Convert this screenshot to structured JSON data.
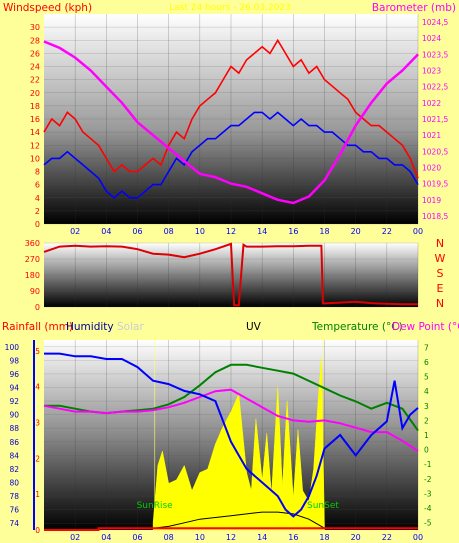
{
  "background_color": "#ffff99",
  "header_text": "Last 24 hours - 26.03.2023",
  "time_axis": {
    "ticks": [
      "02",
      "04",
      "06",
      "08",
      "10",
      "12",
      "14",
      "16",
      "18",
      "20",
      "22",
      "00"
    ]
  },
  "chart_data": [
    {
      "type": "line",
      "name": "wind-barometer",
      "left_label": "Windspeed (kph)",
      "right_label": "Barometer (mb)",
      "y_left": {
        "min": 0,
        "max": 32,
        "ticks": [
          "0",
          "2",
          "4",
          "6",
          "8",
          "10",
          "12",
          "14",
          "16",
          "18",
          "20",
          "22",
          "24",
          "26",
          "28",
          "30"
        ]
      },
      "y_right": {
        "min": 1018.25,
        "max": 1024.75,
        "ticks": [
          "1018,5",
          "1019",
          "1019,5",
          "1020",
          "1020,5",
          "1021",
          "1021,5",
          "1022",
          "1022,5",
          "1023",
          "1023,5",
          "1024",
          "1024,5"
        ]
      },
      "series": [
        {
          "key": "gust",
          "color": "#ff0000",
          "axis": "left",
          "x": [
            0,
            0.5,
            1,
            1.5,
            2,
            2.5,
            3,
            3.5,
            4,
            4.5,
            5,
            5.5,
            6,
            6.5,
            7,
            7.5,
            8,
            8.5,
            9,
            9.5,
            10,
            10.5,
            11,
            11.5,
            12,
            12.5,
            13,
            13.5,
            14,
            14.5,
            15,
            15.5,
            16,
            16.5,
            17,
            17.5,
            18,
            18.5,
            19,
            19.5,
            20,
            20.5,
            21,
            21.5,
            22,
            22.5,
            23,
            23.5,
            24
          ],
          "values": [
            14,
            16,
            15,
            17,
            16,
            14,
            13,
            12,
            10,
            8,
            9,
            8,
            8,
            9,
            10,
            9,
            12,
            14,
            13,
            16,
            18,
            19,
            20,
            22,
            24,
            23,
            25,
            26,
            27,
            26,
            28,
            26,
            24,
            25,
            23,
            24,
            22,
            21,
            20,
            19,
            17,
            16,
            15,
            15,
            14,
            13,
            12,
            10,
            7
          ]
        },
        {
          "key": "average",
          "color": "#0000ff",
          "axis": "left",
          "x": [
            0,
            0.5,
            1,
            1.5,
            2,
            2.5,
            3,
            3.5,
            4,
            4.5,
            5,
            5.5,
            6,
            6.5,
            7,
            7.5,
            8,
            8.5,
            9,
            9.5,
            10,
            10.5,
            11,
            11.5,
            12,
            12.5,
            13,
            13.5,
            14,
            14.5,
            15,
            15.5,
            16,
            16.5,
            17,
            17.5,
            18,
            18.5,
            19,
            19.5,
            20,
            20.5,
            21,
            21.5,
            22,
            22.5,
            23,
            23.5,
            24
          ],
          "values": [
            9,
            10,
            10,
            11,
            10,
            9,
            8,
            7,
            5,
            4,
            5,
            4,
            4,
            5,
            6,
            6,
            8,
            10,
            9,
            11,
            12,
            13,
            13,
            14,
            15,
            15,
            16,
            17,
            17,
            16,
            17,
            16,
            15,
            16,
            15,
            15,
            14,
            14,
            13,
            12,
            12,
            11,
            11,
            10,
            10,
            9,
            9,
            8,
            6
          ]
        },
        {
          "key": "barometer",
          "color": "#ff00ff",
          "axis": "right",
          "x": [
            0,
            1,
            2,
            3,
            4,
            5,
            6,
            7,
            8,
            9,
            10,
            11,
            12,
            13,
            14,
            15,
            16,
            17,
            18,
            19,
            20,
            21,
            22,
            23,
            24
          ],
          "values": [
            1023.9,
            1023.7,
            1023.4,
            1023.0,
            1022.5,
            1022.0,
            1021.4,
            1021.0,
            1020.6,
            1020.2,
            1019.8,
            1019.7,
            1019.5,
            1019.4,
            1019.2,
            1019.0,
            1018.9,
            1019.1,
            1019.6,
            1020.4,
            1021.3,
            1022.0,
            1022.6,
            1023.0,
            1023.5
          ]
        }
      ]
    },
    {
      "type": "line",
      "name": "wind-direction",
      "y_left": {
        "min": 0,
        "max": 360,
        "ticks": [
          "0",
          "90",
          "180",
          "270",
          "360"
        ]
      },
      "direction_letters": [
        "N",
        "W",
        "S",
        "E",
        "N"
      ],
      "series": [
        {
          "key": "direction",
          "color": "#dd0000",
          "x": [
            0,
            1,
            2,
            3,
            4,
            5,
            6,
            7,
            8,
            9,
            10,
            11,
            12,
            12.2,
            12.5,
            12.8,
            13,
            14,
            15,
            16,
            17,
            17.8,
            17.9,
            18,
            19,
            20,
            21,
            22,
            23,
            24
          ],
          "values": [
            310,
            340,
            345,
            340,
            342,
            340,
            325,
            300,
            295,
            280,
            300,
            325,
            355,
            10,
            10,
            350,
            340,
            340,
            342,
            342,
            345,
            345,
            20,
            20,
            25,
            30,
            22,
            18,
            15,
            15
          ]
        }
      ]
    },
    {
      "type": "line",
      "name": "rain-humidity-uv-temperature",
      "labels": {
        "rainfall": "Rainfall (mm)",
        "humidity": "Humidity",
        "solar": "Solar",
        "uv": "UV",
        "temperature": "Temperature (°C)",
        "dewpoint": "Dew Point (°C)"
      },
      "colors": {
        "rainfall": "#ff0000",
        "humidity": "#000099",
        "solar": "#cccccc",
        "uv": "#000000",
        "temperature": "#008000",
        "dewpoint": "#ff00ff"
      },
      "y_left": {
        "min": 73,
        "max": 101,
        "ticks": [
          "74",
          "76",
          "78",
          "80",
          "82",
          "84",
          "86",
          "88",
          "90",
          "92",
          "94",
          "96",
          "98",
          "100"
        ]
      },
      "y_rain": {
        "min": 0,
        "max": 5.3,
        "ticks": [
          "0",
          "1",
          "2",
          "3",
          "4",
          "5"
        ]
      },
      "y_right": {
        "min": -5.5,
        "max": 7.5,
        "ticks": [
          "-5",
          "-4",
          "-3",
          "-2",
          "-1",
          "0",
          "1",
          "2",
          "3",
          "4",
          "5",
          "6",
          "7"
        ]
      },
      "sunrise_label": "SunRise",
      "sunset_label": "SunSet",
      "sunrise_hour": 7.1,
      "sunset_hour": 17.9,
      "series": [
        {
          "key": "humidity",
          "color": "#0000ff",
          "axis": "left",
          "x": [
            0,
            1,
            2,
            3,
            4,
            5,
            6,
            7,
            8,
            9,
            10,
            11,
            12,
            12.5,
            13,
            13.5,
            14,
            15,
            15.5,
            16,
            16.5,
            17,
            17.5,
            18,
            19,
            20,
            21,
            22,
            22.5,
            23,
            23.5,
            24
          ],
          "values": [
            99,
            99,
            98.6,
            98.6,
            98.2,
            98.2,
            97,
            95,
            94.5,
            93.5,
            93,
            92,
            86,
            84,
            82,
            81,
            80,
            78,
            76,
            75,
            76,
            78,
            81,
            85,
            87,
            84,
            87,
            89,
            95,
            88,
            90,
            91
          ]
        },
        {
          "key": "temperature",
          "color": "#008000",
          "axis": "right",
          "x": [
            0,
            1,
            2,
            3,
            4,
            5,
            6,
            7,
            8,
            9,
            10,
            11,
            12,
            13,
            14,
            15,
            16,
            17,
            18,
            19,
            20,
            21,
            22,
            23,
            24
          ],
          "values": [
            3.0,
            3.0,
            2.8,
            2.6,
            2.5,
            2.6,
            2.7,
            2.8,
            3.1,
            3.6,
            4.4,
            5.3,
            5.8,
            5.8,
            5.6,
            5.4,
            5.2,
            4.7,
            4.2,
            3.7,
            3.3,
            2.8,
            3.2,
            2.8,
            1.3
          ]
        },
        {
          "key": "dewpoint",
          "color": "#ff00ff",
          "axis": "right",
          "x": [
            0,
            1,
            2,
            3,
            4,
            5,
            6,
            7,
            8,
            9,
            10,
            11,
            12,
            13,
            14,
            15,
            16,
            17,
            18,
            19,
            20,
            21,
            22,
            23,
            24
          ],
          "values": [
            3.0,
            2.8,
            2.6,
            2.6,
            2.5,
            2.6,
            2.6,
            2.7,
            2.9,
            3.2,
            3.6,
            4.0,
            4.1,
            3.5,
            2.9,
            2.3,
            2.0,
            1.9,
            2.0,
            1.8,
            1.5,
            1.2,
            1.2,
            0.6,
            -0.1
          ]
        },
        {
          "key": "solar",
          "color": "#ffff00",
          "axis": "rain",
          "x": [
            7.0,
            7.3,
            7.6,
            8,
            8.5,
            9,
            9.5,
            10,
            10.5,
            11,
            11.5,
            12,
            12.5,
            13,
            13.3,
            13.6,
            14,
            14.3,
            14.6,
            15,
            15.3,
            15.6,
            16,
            16.3,
            16.6,
            17,
            17.3,
            17.6,
            17.8,
            18.0
          ],
          "values": [
            0.2,
            1.8,
            2.2,
            1.3,
            1.4,
            1.8,
            1.1,
            1.6,
            1.7,
            2.4,
            2.9,
            3.3,
            3.8,
            1.6,
            1.1,
            3.1,
            1.4,
            2.7,
            1.0,
            4.0,
            1.2,
            3.6,
            0.9,
            2.8,
            1.1,
            0.8,
            1.7,
            3.7,
            4.8,
            0.1
          ]
        },
        {
          "key": "uv",
          "color": "#000000",
          "axis": "rain",
          "x": [
            7,
            8,
            9,
            10,
            11,
            12,
            13,
            14,
            15,
            16,
            17,
            18
          ],
          "values": [
            0.05,
            0.1,
            0.2,
            0.3,
            0.35,
            0.4,
            0.45,
            0.5,
            0.5,
            0.45,
            0.3,
            0.05
          ]
        },
        {
          "key": "rainfall",
          "color": "#ff0000",
          "axis": "rain",
          "x": [
            0,
            3.5,
            3.5,
            24
          ],
          "values": [
            0,
            0,
            0.05,
            0.05
          ]
        }
      ]
    }
  ]
}
